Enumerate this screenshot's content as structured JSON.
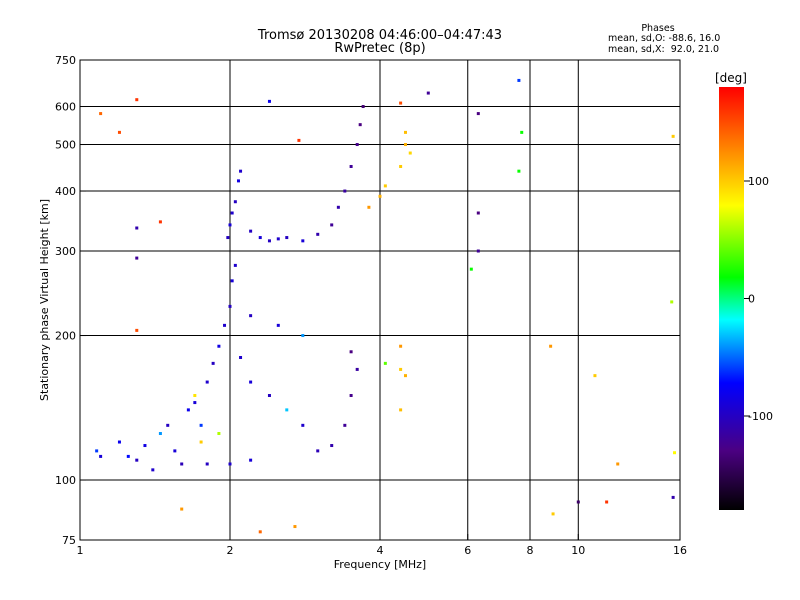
{
  "header": {
    "title_line1": "Tromsø 20130208 04:46:00–04:47:43",
    "title_line2": "RwPretec (8p)",
    "stats_title": "Phases",
    "stats_o": "mean, sd,O: -88.6, 16.0",
    "stats_x": "mean, sd,X:  92.0, 21.0"
  },
  "colors": {
    "scale": [
      "#000000",
      "#4b0082",
      "#0000ff",
      "#00ffff",
      "#00ff00",
      "#ffff00",
      "#ff8000",
      "#ff0000"
    ]
  },
  "chart_data": {
    "type": "scatter",
    "x_scale": "log",
    "y_scale": "log",
    "xlabel": "Frequency [MHz]",
    "ylabel": "Stationary phase Virtual Height [km]",
    "xlim": [
      1,
      16
    ],
    "ylim": [
      75,
      750
    ],
    "x_ticks": [
      {
        "value": 1,
        "label": "1"
      },
      {
        "value": 2,
        "label": "2"
      },
      {
        "value": 4,
        "label": "4"
      },
      {
        "value": 6,
        "label": "6"
      },
      {
        "value": 8,
        "label": "8"
      },
      {
        "value": 10,
        "label": "10"
      },
      {
        "value": 16,
        "label": "16"
      }
    ],
    "y_ticks": [
      {
        "value": 75,
        "label": "75"
      },
      {
        "value": 100,
        "label": "100"
      },
      {
        "value": 200,
        "label": "200"
      },
      {
        "value": 300,
        "label": "300"
      },
      {
        "value": 400,
        "label": "400"
      },
      {
        "value": 500,
        "label": "500"
      },
      {
        "value": 600,
        "label": "600"
      },
      {
        "value": 750,
        "label": "750"
      }
    ],
    "grid_x": [
      2,
      4,
      6,
      8,
      10
    ],
    "grid_y": [
      100,
      200,
      300,
      400,
      500,
      600
    ],
    "grid": true,
    "colorbar": {
      "label": "[deg]",
      "min": -180,
      "max": 180,
      "ticks": [
        100,
        0,
        -100
      ]
    },
    "points": [
      {
        "x": 1.08,
        "y": 115,
        "phase": -60
      },
      {
        "x": 1.1,
        "y": 112,
        "phase": -90
      },
      {
        "x": 1.2,
        "y": 120,
        "phase": -80
      },
      {
        "x": 1.25,
        "y": 112,
        "phase": -70
      },
      {
        "x": 1.3,
        "y": 110,
        "phase": -100
      },
      {
        "x": 1.35,
        "y": 118,
        "phase": -85
      },
      {
        "x": 1.4,
        "y": 105,
        "phase": -95
      },
      {
        "x": 1.45,
        "y": 125,
        "phase": -40
      },
      {
        "x": 1.5,
        "y": 130,
        "phase": -100
      },
      {
        "x": 1.55,
        "y": 115,
        "phase": -90
      },
      {
        "x": 1.6,
        "y": 108,
        "phase": -105
      },
      {
        "x": 1.65,
        "y": 140,
        "phase": -80
      },
      {
        "x": 1.7,
        "y": 145,
        "phase": -90
      },
      {
        "x": 1.75,
        "y": 130,
        "phase": -60
      },
      {
        "x": 1.8,
        "y": 160,
        "phase": -95
      },
      {
        "x": 1.85,
        "y": 175,
        "phase": -100
      },
      {
        "x": 1.9,
        "y": 190,
        "phase": -85
      },
      {
        "x": 1.95,
        "y": 210,
        "phase": -95
      },
      {
        "x": 2.0,
        "y": 230,
        "phase": -100
      },
      {
        "x": 2.02,
        "y": 260,
        "phase": -90
      },
      {
        "x": 2.05,
        "y": 280,
        "phase": -95
      },
      {
        "x": 1.98,
        "y": 320,
        "phase": -100
      },
      {
        "x": 2.0,
        "y": 340,
        "phase": -90
      },
      {
        "x": 2.02,
        "y": 360,
        "phase": -95
      },
      {
        "x": 2.05,
        "y": 380,
        "phase": -100
      },
      {
        "x": 2.08,
        "y": 420,
        "phase": -85
      },
      {
        "x": 2.1,
        "y": 440,
        "phase": -95
      },
      {
        "x": 2.2,
        "y": 330,
        "phase": -100
      },
      {
        "x": 2.3,
        "y": 320,
        "phase": -90
      },
      {
        "x": 2.4,
        "y": 315,
        "phase": -100
      },
      {
        "x": 2.5,
        "y": 318,
        "phase": -95
      },
      {
        "x": 2.6,
        "y": 320,
        "phase": -100
      },
      {
        "x": 2.8,
        "y": 315,
        "phase": -90
      },
      {
        "x": 3.0,
        "y": 325,
        "phase": -110
      },
      {
        "x": 3.2,
        "y": 340,
        "phase": -120
      },
      {
        "x": 3.3,
        "y": 370,
        "phase": -110
      },
      {
        "x": 3.4,
        "y": 400,
        "phase": -115
      },
      {
        "x": 3.5,
        "y": 450,
        "phase": -120
      },
      {
        "x": 3.6,
        "y": 500,
        "phase": -125
      },
      {
        "x": 3.65,
        "y": 550,
        "phase": -130
      },
      {
        "x": 3.7,
        "y": 600,
        "phase": -135
      },
      {
        "x": 4.0,
        "y": 390,
        "phase": 110
      },
      {
        "x": 4.1,
        "y": 410,
        "phase": 100
      },
      {
        "x": 4.4,
        "y": 450,
        "phase": 100
      },
      {
        "x": 4.5,
        "y": 500,
        "phase": 110
      },
      {
        "x": 4.5,
        "y": 530,
        "phase": 105
      },
      {
        "x": 4.6,
        "y": 480,
        "phase": 95
      },
      {
        "x": 3.8,
        "y": 370,
        "phase": 120
      },
      {
        "x": 2.2,
        "y": 160,
        "phase": -90
      },
      {
        "x": 2.4,
        "y": 150,
        "phase": -100
      },
      {
        "x": 2.6,
        "y": 140,
        "phase": -30
      },
      {
        "x": 2.8,
        "y": 130,
        "phase": -95
      },
      {
        "x": 3.0,
        "y": 115,
        "phase": -105
      },
      {
        "x": 3.2,
        "y": 118,
        "phase": -110
      },
      {
        "x": 3.4,
        "y": 130,
        "phase": -120
      },
      {
        "x": 3.5,
        "y": 150,
        "phase": -125
      },
      {
        "x": 3.6,
        "y": 170,
        "phase": -115
      },
      {
        "x": 3.5,
        "y": 185,
        "phase": -130
      },
      {
        "x": 2.8,
        "y": 200,
        "phase": -40
      },
      {
        "x": 2.5,
        "y": 210,
        "phase": -90
      },
      {
        "x": 2.2,
        "y": 220,
        "phase": -100
      },
      {
        "x": 2.1,
        "y": 180,
        "phase": -95
      },
      {
        "x": 1.9,
        "y": 125,
        "phase": 60
      },
      {
        "x": 1.75,
        "y": 120,
        "phase": 100
      },
      {
        "x": 1.7,
        "y": 150,
        "phase": 90
      },
      {
        "x": 1.8,
        "y": 108,
        "phase": -100
      },
      {
        "x": 2.0,
        "y": 108,
        "phase": -95
      },
      {
        "x": 2.2,
        "y": 110,
        "phase": -90
      },
      {
        "x": 4.4,
        "y": 170,
        "phase": 100
      },
      {
        "x": 4.5,
        "y": 165,
        "phase": 110
      },
      {
        "x": 4.4,
        "y": 140,
        "phase": 105
      },
      {
        "x": 4.1,
        "y": 175,
        "phase": 40
      },
      {
        "x": 4.4,
        "y": 190,
        "phase": 120
      },
      {
        "x": 1.1,
        "y": 580,
        "phase": 140
      },
      {
        "x": 1.2,
        "y": 530,
        "phase": 150
      },
      {
        "x": 1.3,
        "y": 620,
        "phase": 160
      },
      {
        "x": 1.45,
        "y": 345,
        "phase": 160
      },
      {
        "x": 1.3,
        "y": 335,
        "phase": -110
      },
      {
        "x": 1.3,
        "y": 290,
        "phase": -120
      },
      {
        "x": 1.3,
        "y": 205,
        "phase": 150
      },
      {
        "x": 1.6,
        "y": 87,
        "phase": 120
      },
      {
        "x": 2.3,
        "y": 78,
        "phase": 140
      },
      {
        "x": 2.7,
        "y": 80,
        "phase": 120
      },
      {
        "x": 2.4,
        "y": 615,
        "phase": -80
      },
      {
        "x": 2.75,
        "y": 510,
        "phase": 160
      },
      {
        "x": 4.4,
        "y": 610,
        "phase": 150
      },
      {
        "x": 5.0,
        "y": 640,
        "phase": -120
      },
      {
        "x": 6.3,
        "y": 580,
        "phase": -130
      },
      {
        "x": 6.3,
        "y": 360,
        "phase": -130
      },
      {
        "x": 6.3,
        "y": 300,
        "phase": -120
      },
      {
        "x": 6.1,
        "y": 275,
        "phase": 20
      },
      {
        "x": 7.6,
        "y": 680,
        "phase": -60
      },
      {
        "x": 7.7,
        "y": 530,
        "phase": 20
      },
      {
        "x": 7.6,
        "y": 440,
        "phase": 20
      },
      {
        "x": 8.8,
        "y": 190,
        "phase": 120
      },
      {
        "x": 8.9,
        "y": 85,
        "phase": 100
      },
      {
        "x": 10.0,
        "y": 90,
        "phase": -140
      },
      {
        "x": 10.8,
        "y": 165,
        "phase": 100
      },
      {
        "x": 11.4,
        "y": 90,
        "phase": 160
      },
      {
        "x": 12.0,
        "y": 108,
        "phase": 120
      },
      {
        "x": 15.5,
        "y": 92,
        "phase": -110
      },
      {
        "x": 15.6,
        "y": 114,
        "phase": 80
      },
      {
        "x": 15.4,
        "y": 235,
        "phase": 60
      },
      {
        "x": 15.5,
        "y": 520,
        "phase": 100
      }
    ]
  }
}
